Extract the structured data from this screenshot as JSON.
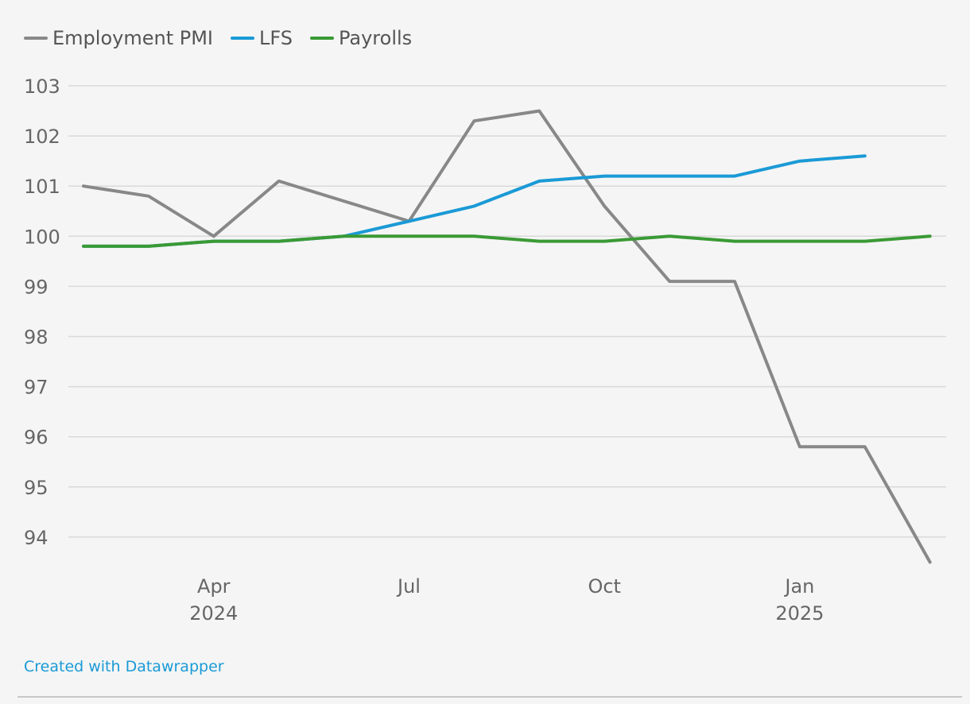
{
  "chart_data": {
    "type": "line",
    "title": "",
    "xlabel": "",
    "ylabel": "",
    "ylim": [
      93.5,
      103
    ],
    "y_ticks": [
      "103",
      "102",
      "101",
      "100",
      "99",
      "98",
      "97",
      "96",
      "95",
      "94"
    ],
    "x_ticks": [
      {
        "index": 2,
        "label": "Apr",
        "sublabel": "2024"
      },
      {
        "index": 5,
        "label": "Jul",
        "sublabel": ""
      },
      {
        "index": 8,
        "label": "Oct",
        "sublabel": ""
      },
      {
        "index": 11,
        "label": "Jan",
        "sublabel": "2025"
      }
    ],
    "categories": [
      "Feb 2024",
      "Mar 2024",
      "Apr 2024",
      "May 2024",
      "Jun 2024",
      "Jul 2024",
      "Aug 2024",
      "Sep 2024",
      "Oct 2024",
      "Nov 2024",
      "Dec 2024",
      "Jan 2025",
      "Feb 2025",
      "Mar 2025"
    ],
    "series": [
      {
        "name": "Employment PMI",
        "color": "#888888",
        "values": [
          101.0,
          100.8,
          100.0,
          101.1,
          100.7,
          100.3,
          102.3,
          102.5,
          100.6,
          99.1,
          99.1,
          95.8,
          95.8,
          93.5
        ]
      },
      {
        "name": "LFS",
        "color": "#1a9ad6",
        "values": [
          99.8,
          99.8,
          99.9,
          99.9,
          100.0,
          100.3,
          100.6,
          101.1,
          101.2,
          101.2,
          101.2,
          101.5,
          101.6,
          null
        ]
      },
      {
        "name": "Payrolls",
        "color": "#3a9a35",
        "values": [
          99.8,
          99.8,
          99.9,
          99.9,
          100.0,
          100.0,
          100.0,
          99.9,
          99.9,
          100.0,
          99.9,
          99.9,
          99.9,
          100.0
        ]
      }
    ]
  },
  "footer": {
    "credit": "Created with Datawrapper"
  }
}
